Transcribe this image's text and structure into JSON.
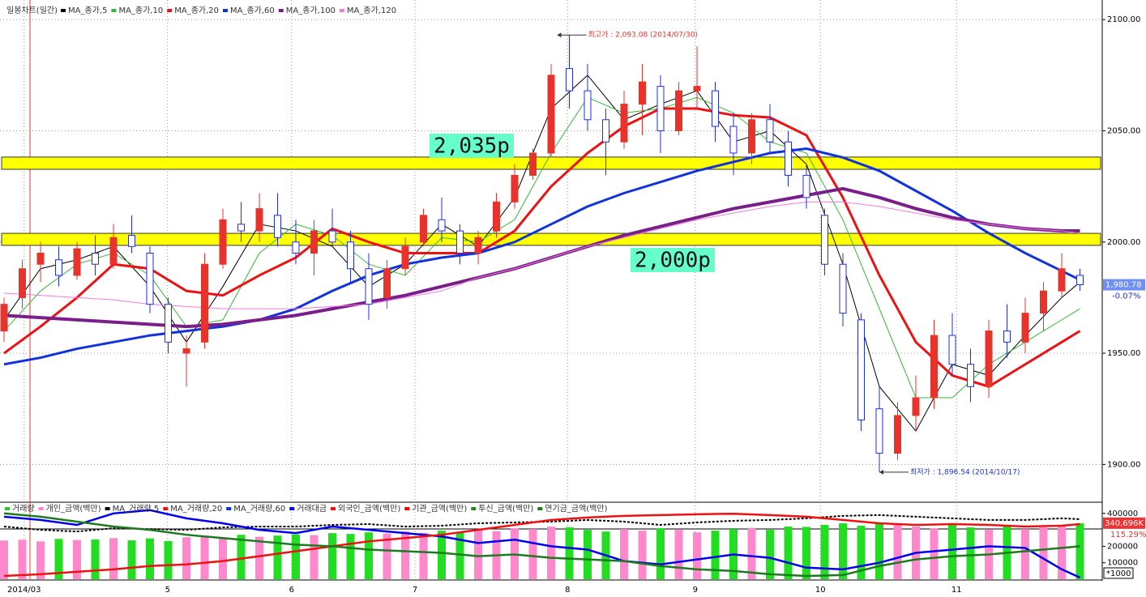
{
  "chart_data": [
    {
      "type": "candlestick",
      "title": "일봉차트(일간)",
      "color_up": "#e8332d",
      "color_down": "#1f2fe0",
      "x": [
        0,
        3,
        6,
        9,
        12,
        15,
        18,
        21,
        24,
        27,
        30,
        33,
        36,
        39,
        42,
        45,
        48,
        51,
        54,
        57,
        60,
        63,
        66,
        69,
        72,
        75,
        78,
        81,
        84,
        87,
        90,
        93,
        96,
        99,
        102,
        105,
        108,
        111,
        114,
        117,
        120,
        123,
        126,
        129,
        132,
        135,
        138,
        141,
        144,
        147,
        150,
        153,
        156,
        159,
        162,
        165,
        168,
        171,
        174,
        177
      ],
      "open": [
        1960,
        1975,
        1990,
        1992,
        1985,
        1995,
        1990,
        2003,
        1995,
        1972,
        1950,
        1955,
        1990,
        2008,
        2005,
        2012,
        2000,
        1995,
        2005,
        2000,
        1988,
        1975,
        1988,
        2000,
        2010,
        2005,
        1995,
        2005,
        2018,
        2030,
        2040,
        2078,
        2068,
        2055,
        2045,
        2062,
        2070,
        2050,
        2068,
        2068,
        2052,
        2040,
        2055,
        2045,
        2030,
        2012,
        1990,
        1965,
        1925,
        1905,
        1922,
        1930,
        1958,
        1945,
        1935,
        1960,
        1955,
        1968,
        1978,
        1985
      ],
      "high": [
        1975,
        1992,
        2000,
        1998,
        2000,
        2003,
        2008,
        2012,
        1998,
        1975,
        1958,
        1995,
        2015,
        2018,
        2022,
        2022,
        2010,
        2010,
        2015,
        2005,
        1995,
        1992,
        2002,
        2015,
        2020,
        2008,
        2005,
        2022,
        2035,
        2042,
        2080,
        2093.08,
        2080,
        2060,
        2068,
        2080,
        2075,
        2072,
        2088,
        2072,
        2058,
        2058,
        2062,
        2050,
        2035,
        2015,
        1995,
        1968,
        1935,
        1928,
        1940,
        1965,
        1968,
        1952,
        1965,
        1972,
        1975,
        1982,
        1995,
        1988
      ],
      "low": [
        1955,
        1970,
        1982,
        1980,
        1983,
        1985,
        1988,
        1995,
        1968,
        1950,
        1935,
        1952,
        1988,
        2000,
        2000,
        1998,
        1990,
        1985,
        1998,
        1982,
        1965,
        1970,
        1985,
        1998,
        2000,
        1990,
        1990,
        2002,
        2015,
        2028,
        2038,
        2060,
        2050,
        2030,
        2042,
        2048,
        2040,
        2048,
        2060,
        2045,
        2030,
        2035,
        2040,
        2025,
        2015,
        1985,
        1962,
        1915,
        1896.54,
        1902,
        1915,
        1925,
        1940,
        1928,
        1930,
        1948,
        1950,
        1960,
        1975,
        1978
      ],
      "close": [
        1972,
        1988,
        1995,
        1985,
        1997,
        1990,
        2002,
        1998,
        1972,
        1955,
        1952,
        1990,
        2010,
        2005,
        2015,
        2002,
        1995,
        2005,
        2000,
        1988,
        1972,
        1988,
        1998,
        2012,
        2005,
        1995,
        2002,
        2018,
        2030,
        2040,
        2075,
        2068,
        2055,
        2045,
        2062,
        2072,
        2050,
        2068,
        2070,
        2052,
        2040,
        2055,
        2045,
        2030,
        2020,
        1990,
        1968,
        1920,
        1905,
        1922,
        1930,
        1958,
        1945,
        1935,
        1960,
        1955,
        1968,
        1978,
        1988,
        1980.78
      ],
      "last_label": "1,980.78",
      "last_change": "-0.07%",
      "xlim": [
        0,
        180
      ],
      "ylim": [
        1883,
        2107
      ],
      "xticks": [
        {
          "value": 3.3,
          "label": "2014/03"
        },
        {
          "value": 26.9,
          "label": "5"
        },
        {
          "value": 47.3,
          "label": "6"
        },
        {
          "value": 67.6,
          "label": "7"
        },
        {
          "value": 92.7,
          "label": "8"
        },
        {
          "value": 113.7,
          "label": "9"
        },
        {
          "value": 134.3,
          "label": "10"
        },
        {
          "value": 156.7,
          "label": "11"
        }
      ],
      "yticks": [
        {
          "value": 1900,
          "label": "1900.00"
        },
        {
          "value": 1950,
          "label": "1950.00"
        },
        {
          "value": 2000,
          "label": "2000.00"
        },
        {
          "value": 2050,
          "label": "2050.00"
        },
        {
          "value": 2100,
          "label": "2100.00"
        }
      ],
      "grid": true,
      "ma_series": [
        {
          "name": "MA_종가,5",
          "color": "#000000",
          "width": 1,
          "x": [
            0,
            6,
            12,
            18,
            24,
            30,
            36,
            42,
            48,
            54,
            60,
            66,
            72,
            78,
            84,
            90,
            96,
            102,
            108,
            114,
            120,
            126,
            132,
            138,
            144,
            150,
            156,
            162,
            168,
            174,
            177
          ],
          "values": [
            1965,
            1988,
            1992,
            1998,
            1980,
            1955,
            1980,
            2008,
            2005,
            1998,
            1980,
            1990,
            2008,
            1998,
            2020,
            2060,
            2075,
            2055,
            2062,
            2068,
            2045,
            2050,
            2035,
            1990,
            1935,
            1915,
            1945,
            1940,
            1958,
            1975,
            1982
          ]
        },
        {
          "name": "MA_종가,10",
          "color": "#33bb33",
          "width": 1,
          "x": [
            0,
            6,
            12,
            18,
            24,
            30,
            36,
            42,
            48,
            54,
            60,
            66,
            72,
            78,
            84,
            90,
            96,
            102,
            108,
            114,
            120,
            126,
            132,
            138,
            144,
            150,
            156,
            162,
            168,
            174,
            177
          ],
          "values": [
            1960,
            1978,
            1990,
            1995,
            1985,
            1962,
            1965,
            1995,
            2008,
            2003,
            1990,
            1985,
            2002,
            2000,
            2010,
            2040,
            2065,
            2058,
            2060,
            2065,
            2058,
            2045,
            2040,
            2010,
            1970,
            1930,
            1930,
            1945,
            1955,
            1965,
            1970
          ]
        },
        {
          "name": "MA_종가,20",
          "color": "#ee1111",
          "width": 3,
          "x": [
            0,
            6,
            12,
            18,
            24,
            30,
            36,
            42,
            48,
            54,
            60,
            66,
            72,
            78,
            84,
            90,
            96,
            102,
            108,
            114,
            120,
            126,
            132,
            138,
            144,
            150,
            156,
            162,
            168,
            174,
            177
          ],
          "values": [
            1950,
            1962,
            1975,
            1990,
            1988,
            1978,
            1976,
            1985,
            1993,
            2006,
            2000,
            1995,
            1995,
            1995,
            2005,
            2025,
            2040,
            2052,
            2060,
            2060,
            2057,
            2056,
            2048,
            2020,
            1985,
            1955,
            1940,
            1935,
            1945,
            1955,
            1960
          ]
        },
        {
          "name": "MA_종가,60",
          "color": "#1133dd",
          "width": 3,
          "x": [
            0,
            6,
            12,
            18,
            24,
            30,
            36,
            42,
            48,
            54,
            60,
            66,
            72,
            78,
            84,
            90,
            96,
            102,
            108,
            114,
            120,
            126,
            132,
            138,
            144,
            150,
            156,
            162,
            168,
            174,
            177
          ],
          "values": [
            1945,
            1948,
            1952,
            1955,
            1958,
            1960,
            1962,
            1965,
            1970,
            1978,
            1985,
            1990,
            1993,
            1995,
            2000,
            2008,
            2016,
            2022,
            2027,
            2032,
            2036,
            2040,
            2042,
            2038,
            2032,
            2023,
            2014,
            2004,
            1995,
            1987,
            1983
          ]
        },
        {
          "name": "MA_종가,100",
          "color": "#7a1f8a",
          "width": 4,
          "x": [
            0,
            6,
            12,
            18,
            24,
            30,
            36,
            42,
            48,
            54,
            60,
            66,
            72,
            78,
            84,
            90,
            96,
            102,
            108,
            114,
            120,
            126,
            132,
            138,
            144,
            150,
            156,
            162,
            168,
            174,
            177
          ],
          "values": [
            1967,
            1966,
            1965,
            1964,
            1963,
            1962,
            1963,
            1965,
            1967,
            1970,
            1973,
            1976,
            1980,
            1984,
            1988,
            1993,
            1998,
            2003,
            2007,
            2011,
            2015,
            2018,
            2021,
            2024,
            2020,
            2015,
            2011,
            2008,
            2006,
            2005,
            2005
          ]
        },
        {
          "name": "MA_종가,120",
          "color": "#f07ae0",
          "width": 1,
          "x": [
            0,
            6,
            12,
            18,
            24,
            30,
            36,
            42,
            48,
            54,
            60,
            66,
            72,
            78,
            84,
            90,
            96,
            102,
            108,
            114,
            120,
            126,
            132,
            138,
            144,
            150,
            156,
            162,
            168,
            174,
            177
          ],
          "values": [
            1977,
            1976,
            1975,
            1974,
            1972,
            1971,
            1970,
            1970,
            1970,
            1971,
            1972,
            1975,
            1978,
            1984,
            1988,
            1993,
            1998,
            2002,
            2006,
            2010,
            2013,
            2016,
            2018,
            2018,
            2016,
            2013,
            2010,
            2008,
            2006,
            2005,
            2004
          ]
        }
      ],
      "bands": [
        {
          "label": "2,035p",
          "range": [
            2032.7,
            2038.2
          ]
        },
        {
          "label": "2,000p",
          "range": [
            1998.5,
            2003.9
          ]
        }
      ],
      "annotations": [
        {
          "text": "최고가 : 2,093.08 (2014/07/30)",
          "x": 91,
          "y": 2093.08,
          "color": "#e8332d"
        },
        {
          "text": "최저가 : 1,896.54 (2014/10/17)",
          "x": 144,
          "y": 1896.54,
          "color": "#1f2fe0"
        }
      ]
    },
    {
      "type": "volume",
      "series": [
        {
          "name": "거래량",
          "color": "#22cc22",
          "color_up": "#ff88cc",
          "color_down": "#22dd22",
          "values": [
            235000,
            240000,
            230000,
            245000,
            238000,
            242000,
            250000,
            236000,
            248000,
            232000,
            255000,
            262000,
            250000,
            270000,
            258000,
            265000,
            272000,
            268000,
            280000,
            275000,
            285000,
            278000,
            290000,
            282000,
            295000,
            288000,
            300000,
            292000,
            310000,
            305000,
            320000,
            315000,
            300000,
            290000,
            305000,
            295000,
            310000,
            300000,
            285000,
            295000,
            305000,
            312000,
            300000,
            320000,
            318000,
            330000,
            340000,
            325000,
            345000,
            335000,
            320000,
            310000,
            330000,
            315000,
            300000,
            322000,
            305000,
            315000,
            330000,
            340696
          ]
        },
        {
          "name": "개인_금액(백만)",
          "color": "#ff88cc"
        },
        {
          "name": "MA_거래량,5",
          "color": "#000000",
          "dash": true,
          "values": [
            320000,
            300000,
            290000,
            310000,
            305000,
            300000,
            315000,
            320000,
            320000,
            330000,
            335000,
            320000,
            325000,
            340000,
            345000,
            350000,
            360000,
            350000,
            330000,
            345000,
            355000,
            360000,
            370000,
            385000,
            390000,
            380000,
            370000,
            360000,
            360000,
            370000,
            365000
          ]
        },
        {
          "name": "MA_거래량,20",
          "color": "#ee1111"
        },
        {
          "name": "MA_거래량,60",
          "color": "#1133dd"
        },
        {
          "name": "거래대금",
          "color": "#0000ee",
          "values": [
            380000,
            360000,
            330000,
            400000,
            420000,
            370000,
            340000,
            300000,
            280000,
            320000,
            300000,
            280000,
            260000,
            220000,
            240000,
            200000,
            180000,
            110000,
            90000,
            120000,
            150000,
            130000,
            70000,
            60000,
            100000,
            160000,
            180000,
            200000,
            190000,
            60000,
            10000
          ]
        },
        {
          "name": "외국인_금액(백만)",
          "color": "#ee1111",
          "values": [
            20000,
            30000,
            45000,
            60000,
            80000,
            90000,
            110000,
            140000,
            170000,
            200000,
            230000,
            250000,
            270000,
            300000,
            330000,
            360000,
            375000,
            385000,
            390000,
            395000,
            398000,
            390000,
            380000,
            360000,
            340000,
            330000,
            335000,
            330000,
            320000,
            325000,
            335000
          ]
        },
        {
          "name": "기관_금액(백만)",
          "color": "#ff0000"
        },
        {
          "name": "투신_금액(백만)",
          "color": "#228822"
        },
        {
          "name": "연기금_금액(백만)",
          "color": "#1e7a1e",
          "values": [
            400000,
            380000,
            350000,
            320000,
            300000,
            270000,
            250000,
            230000,
            210000,
            200000,
            180000,
            170000,
            160000,
            140000,
            150000,
            130000,
            120000,
            110000,
            80000,
            60000,
            50000,
            30000,
            20000,
            25000,
            80000,
            120000,
            140000,
            150000,
            170000,
            190000,
            200000
          ]
        }
      ],
      "last_label": "340,696K",
      "ratio": "115.29%",
      "unit": "*1000",
      "ylim": [
        0,
        468000
      ],
      "yticks": [
        100000,
        200000,
        400000
      ]
    }
  ]
}
